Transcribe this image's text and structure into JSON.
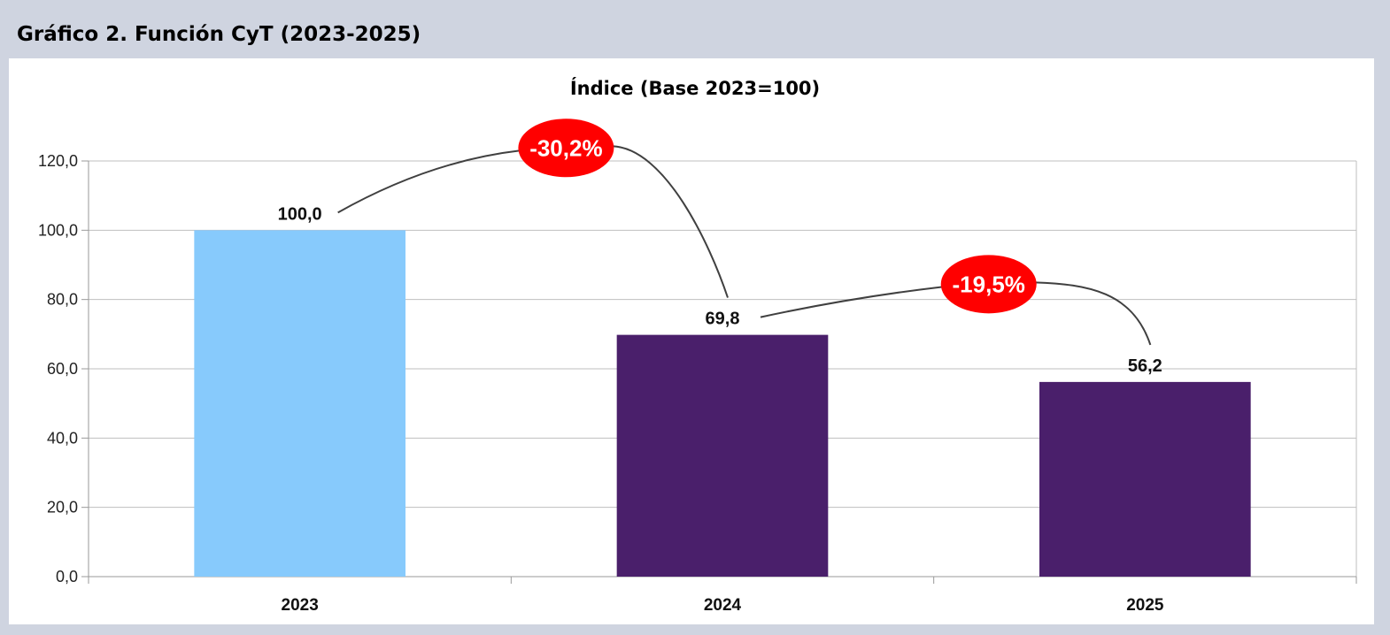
{
  "figure": {
    "title": "Gráfico 2. Función CyT (2023-2025)"
  },
  "chart_data": {
    "type": "bar",
    "title": "Índice (Base 2023=100)",
    "xlabel": "",
    "ylabel": "",
    "categories": [
      "2023",
      "2024",
      "2025"
    ],
    "values": [
      100.0,
      69.8,
      56.2
    ],
    "value_labels": [
      "100,0",
      "69,8",
      "56,2"
    ],
    "bar_colors": [
      "#87cafc",
      "#4a1f6b",
      "#4a1f6b"
    ],
    "ylim": [
      0,
      120
    ],
    "yticks": [
      0,
      20,
      40,
      60,
      80,
      100,
      120
    ],
    "ytick_labels": [
      "0,0",
      "20,0",
      "40,0",
      "60,0",
      "80,0",
      "100,0",
      "120,0"
    ],
    "grid": true,
    "legend": "none",
    "annotations": [
      {
        "text": "-30,2%",
        "from": "2023",
        "to": "2024",
        "color": "#ff0000"
      },
      {
        "text": "-19,5%",
        "from": "2024",
        "to": "2025",
        "color": "#ff0000"
      }
    ]
  }
}
